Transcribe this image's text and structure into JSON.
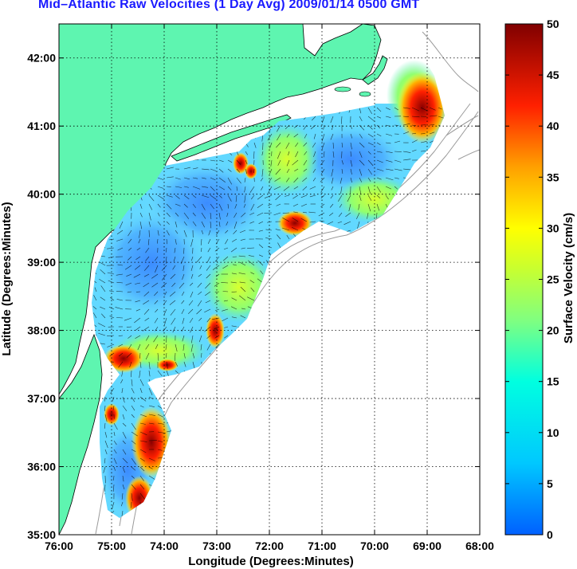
{
  "title": "Mid–Atlantic Raw Velocities (1 Day Avg) 2009/01/14 0500 GMT",
  "map": {
    "xlabel": "Longitude (Degrees:Minutes)",
    "ylabel": "Latitude (Degrees:Minutes)",
    "x_ticks": [
      "76:00",
      "75:00",
      "74:00",
      "73:00",
      "72:00",
      "71:00",
      "70:00",
      "69:00",
      "68:00"
    ],
    "y_ticks": [
      "42:00",
      "41:00",
      "40:00",
      "39:00",
      "38:00",
      "37:00",
      "36:00",
      "35:00"
    ],
    "lon_range": [
      -76,
      -68
    ],
    "lat_range": [
      35,
      42.5
    ],
    "grid": "dotted",
    "land_color": "#5ef5b0",
    "coast_line_color": "#000000",
    "bathymetry_color": "#9a9a9a"
  },
  "colorbar": {
    "label": "Surface Velocity (cm/s)",
    "ticks": [
      "50",
      "45",
      "40",
      "35",
      "30",
      "25",
      "20",
      "15",
      "10",
      "5",
      "0"
    ],
    "range": [
      0,
      50
    ],
    "colormap": "jet"
  }
}
